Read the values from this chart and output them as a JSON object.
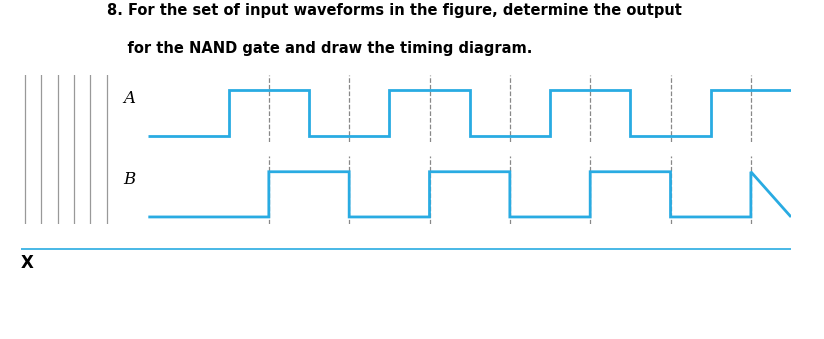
{
  "title_line1": "8. For the set of input waveforms in the figure, determine the output",
  "title_line2": "    for the NAND gate and draw the timing diagram.",
  "waveform_color": "#29ABE2",
  "dashed_color": "#888888",
  "hatch_color": "#aaaaaa",
  "label_A": "A",
  "label_B": "B",
  "label_X": "X",
  "bg_color": "#ffffff",
  "text_color": "#000000",
  "figsize": [
    8.24,
    3.39
  ],
  "dpi": 100,
  "A_steps_t": [
    0,
    2,
    2,
    4,
    4,
    6,
    6,
    8,
    8,
    10,
    10,
    12,
    12,
    14,
    14,
    16
  ],
  "A_steps_v": [
    0,
    0,
    1,
    1,
    0,
    0,
    1,
    1,
    0,
    0,
    1,
    1,
    0,
    0,
    1,
    1
  ],
  "B_steps_t": [
    0,
    3,
    3,
    5,
    5,
    7,
    7,
    9,
    9,
    11,
    11,
    13,
    13,
    15,
    15,
    16
  ],
  "B_steps_v": [
    0,
    0,
    1,
    1,
    0,
    0,
    1,
    1,
    0,
    0,
    1,
    1,
    0,
    0,
    1,
    0
  ],
  "dashed_times": [
    3,
    5,
    7,
    9,
    11,
    13,
    15
  ],
  "xlim": [
    0,
    16
  ],
  "hatch_lines": 6
}
